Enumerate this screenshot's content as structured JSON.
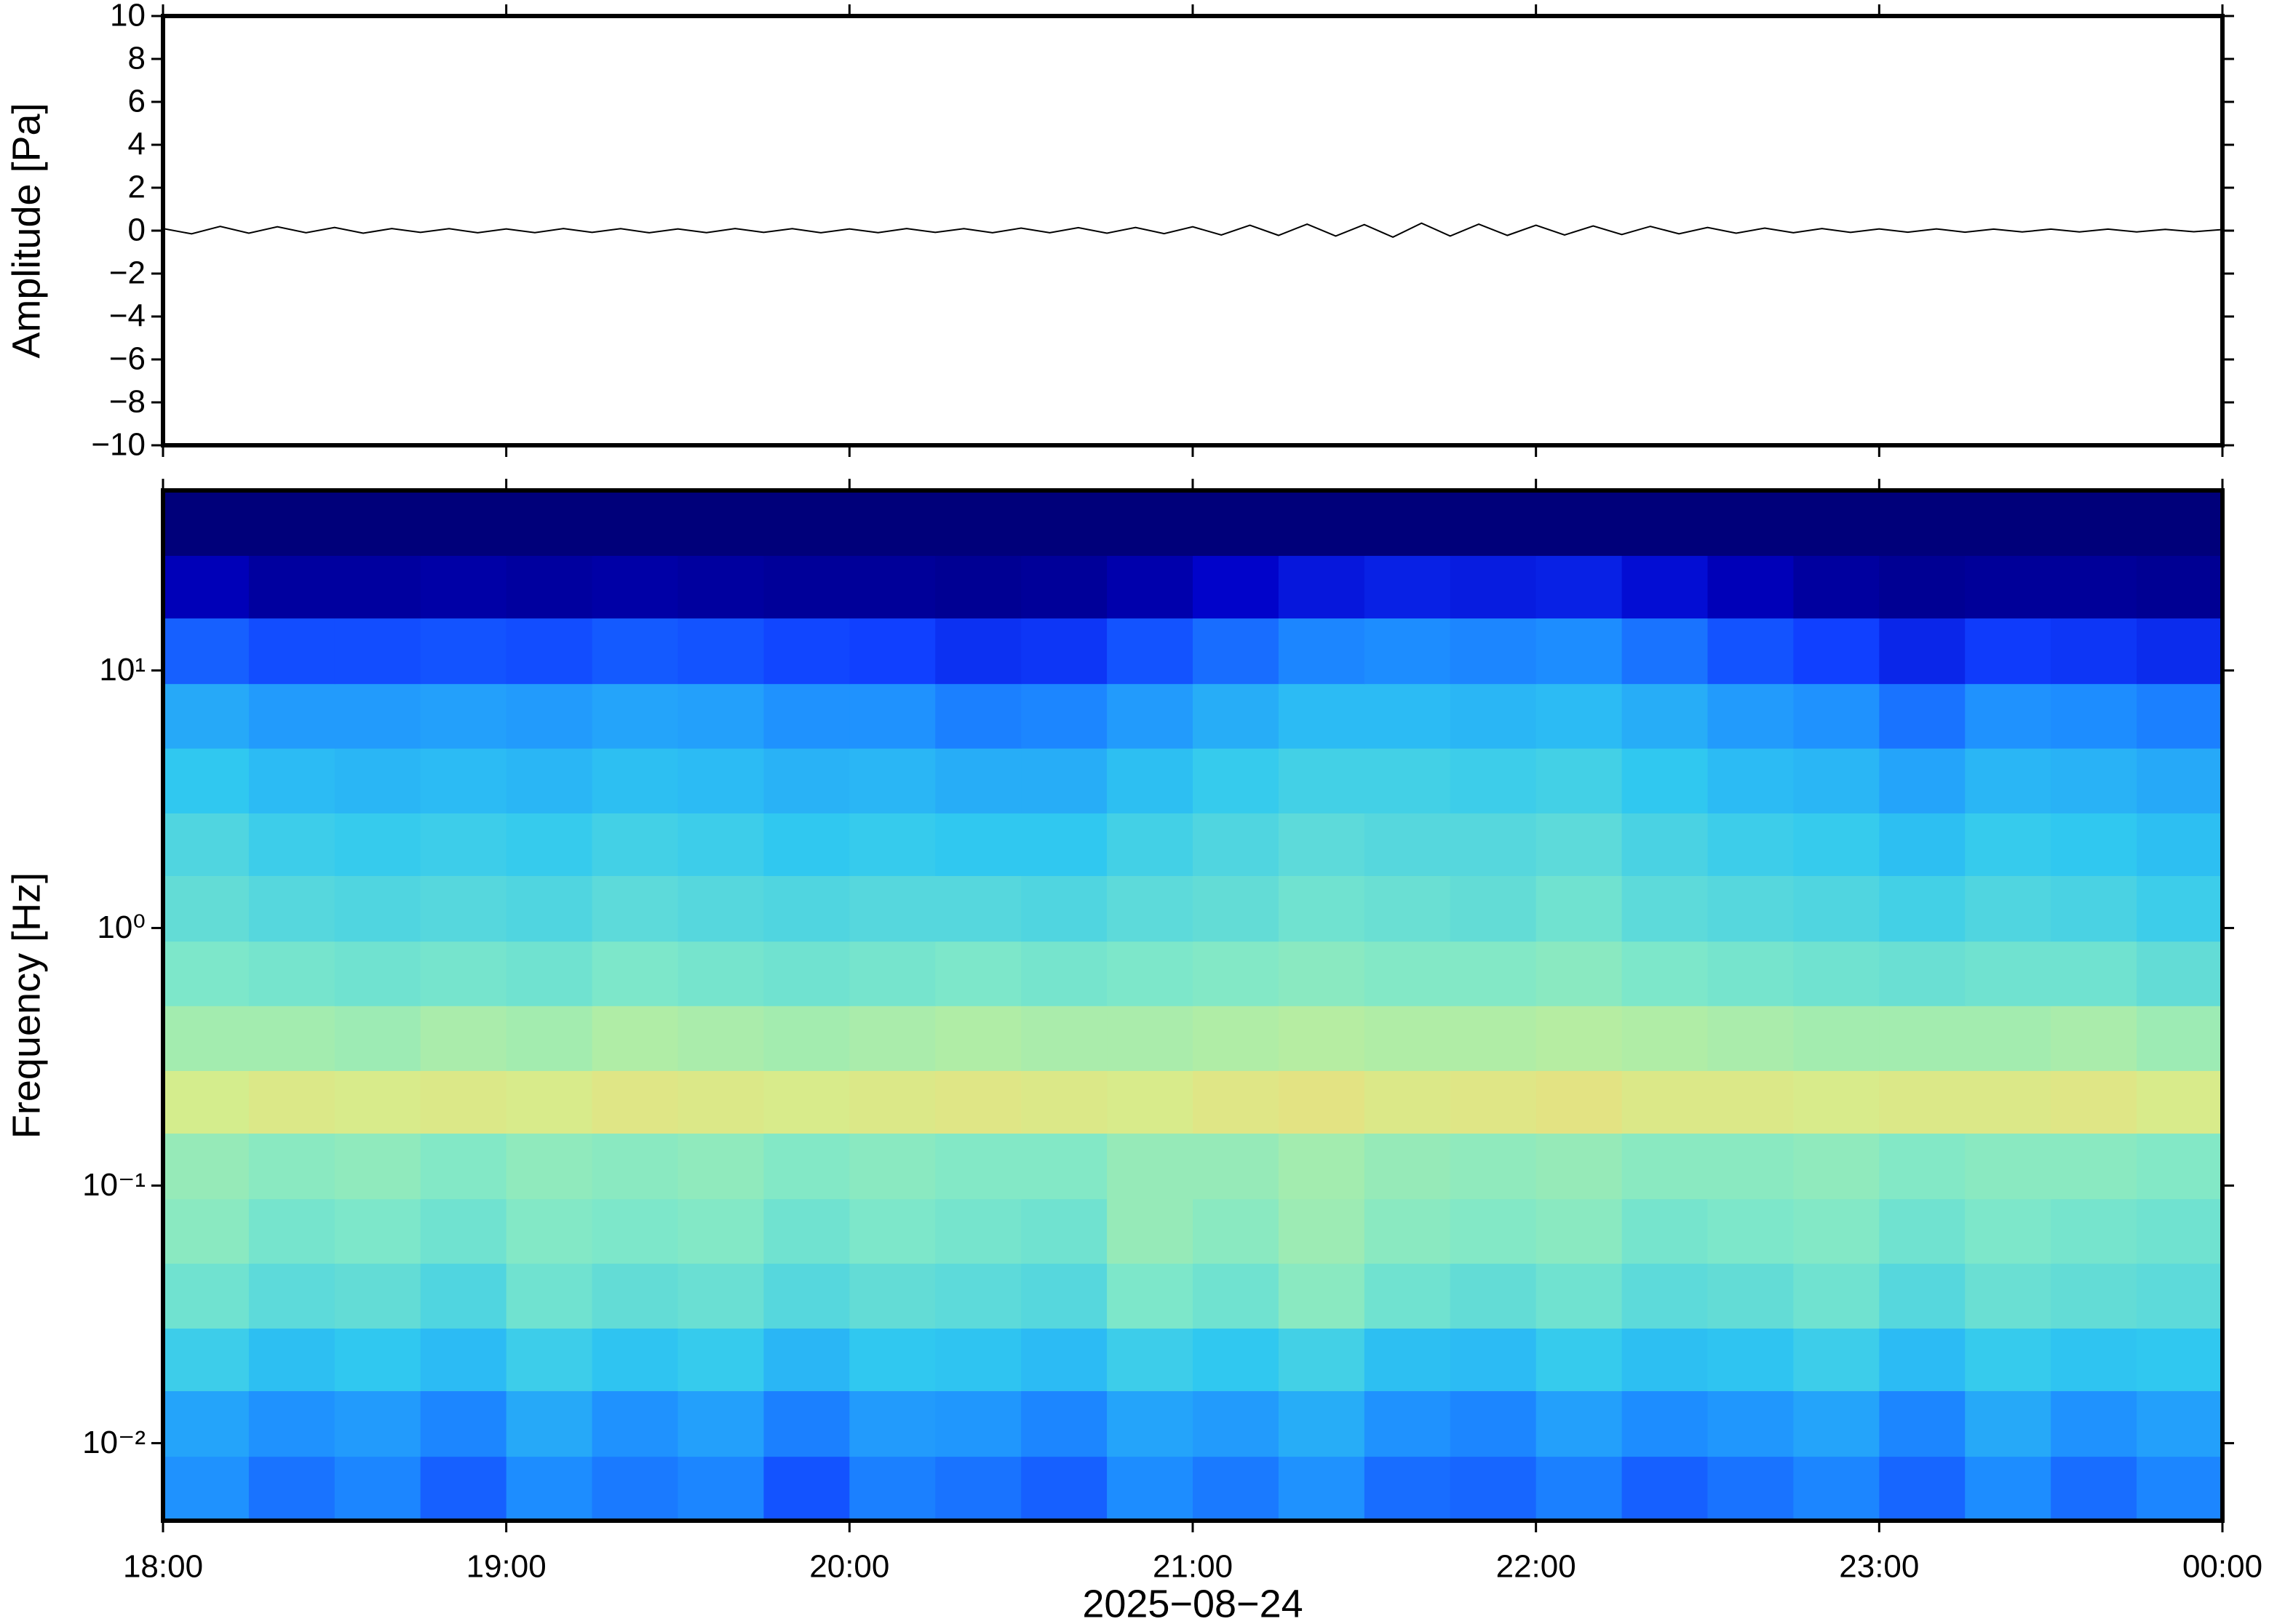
{
  "chart_data": [
    {
      "type": "line",
      "ylabel": "Amplitude [Pa]",
      "color": "#000000",
      "xlim": [
        0,
        360
      ],
      "ylim": [
        -10,
        10
      ],
      "yticks": [
        {
          "value": -10,
          "label": "−10"
        },
        {
          "value": -8,
          "label": "−8"
        },
        {
          "value": -6,
          "label": "−6"
        },
        {
          "value": -4,
          "label": "−4"
        },
        {
          "value": -2,
          "label": "−2"
        },
        0,
        2,
        4,
        6,
        8,
        10
      ],
      "x": [
        0,
        5,
        10,
        15,
        20,
        25,
        30,
        35,
        40,
        45,
        50,
        55,
        60,
        65,
        70,
        75,
        80,
        85,
        90,
        95,
        100,
        105,
        110,
        115,
        120,
        125,
        130,
        135,
        140,
        145,
        150,
        155,
        160,
        165,
        170,
        175,
        180,
        185,
        190,
        195,
        200,
        205,
        210,
        215,
        220,
        225,
        230,
        235,
        240,
        245,
        250,
        255,
        260,
        265,
        270,
        275,
        280,
        285,
        290,
        295,
        300,
        305,
        310,
        315,
        320,
        325,
        330,
        335,
        340,
        345,
        350,
        355,
        360
      ],
      "values": [
        0.1,
        -0.15,
        0.2,
        -0.12,
        0.18,
        -0.1,
        0.15,
        -0.12,
        0.1,
        -0.08,
        0.09,
        -0.1,
        0.08,
        -0.09,
        0.1,
        -0.08,
        0.09,
        -0.1,
        0.08,
        -0.09,
        0.1,
        -0.08,
        0.09,
        -0.1,
        0.08,
        -0.09,
        0.1,
        -0.08,
        0.09,
        -0.1,
        0.12,
        -0.1,
        0.14,
        -0.12,
        0.15,
        -0.14,
        0.18,
        -0.2,
        0.25,
        -0.22,
        0.3,
        -0.25,
        0.28,
        -0.3,
        0.35,
        -0.25,
        0.3,
        -0.22,
        0.25,
        -0.2,
        0.22,
        -0.18,
        0.2,
        -0.15,
        0.15,
        -0.12,
        0.12,
        -0.1,
        0.1,
        -0.08,
        0.08,
        -0.07,
        0.08,
        -0.07,
        0.07,
        -0.06,
        0.07,
        -0.06,
        0.07,
        -0.06,
        0.06,
        -0.05,
        0.05
      ]
    },
    {
      "type": "spectrogram",
      "ylabel": "Frequency [Hz]",
      "xlabel": "2025−08−24",
      "log_y": true,
      "xlim": [
        0,
        360
      ],
      "xticks": [
        {
          "value": 0,
          "label": "18:00"
        },
        {
          "value": 60,
          "label": "19:00"
        },
        {
          "value": 120,
          "label": "20:00"
        },
        {
          "value": 180,
          "label": "21:00"
        },
        {
          "value": 240,
          "label": "22:00"
        },
        {
          "value": 300,
          "label": "23:00"
        },
        {
          "value": 360,
          "label": "00:00"
        }
      ],
      "ylim": [
        0.005,
        50
      ],
      "yticks": [
        {
          "value": 0.01,
          "label": "10⁻²"
        },
        {
          "value": 0.1,
          "label": "10⁻¹"
        },
        {
          "value": 1,
          "label": "10⁰"
        },
        {
          "value": 10,
          "label": "10¹"
        }
      ],
      "colormap": [
        "#00007a",
        "#0000c8",
        "#1040ff",
        "#1e90ff",
        "#30c8f0",
        "#80e8c8",
        "#d0f090",
        "#ffd070",
        "#ff8040"
      ],
      "clim": [
        0,
        1
      ],
      "times": [
        0,
        15,
        30,
        45,
        60,
        75,
        90,
        105,
        120,
        135,
        150,
        165,
        180,
        195,
        210,
        225,
        240,
        255,
        270,
        285,
        300,
        315,
        330,
        345,
        360
      ],
      "freqs": [
        0.005,
        0.0089,
        0.016,
        0.028,
        0.05,
        0.089,
        0.16,
        0.28,
        0.5,
        0.89,
        1.6,
        2.8,
        5,
        8.9,
        16,
        28,
        50
      ],
      "z": [
        [
          0.38,
          0.33,
          0.36,
          0.3,
          0.37,
          0.34,
          0.36,
          0.28,
          0.35,
          0.33,
          0.3,
          0.37,
          0.34,
          0.38,
          0.32,
          0.31,
          0.35,
          0.3,
          0.33,
          0.36,
          0.31,
          0.37,
          0.32,
          0.36
        ],
        [
          0.42,
          0.38,
          0.4,
          0.36,
          0.43,
          0.38,
          0.41,
          0.35,
          0.4,
          0.39,
          0.36,
          0.42,
          0.4,
          0.44,
          0.38,
          0.36,
          0.41,
          0.37,
          0.39,
          0.42,
          0.36,
          0.43,
          0.38,
          0.41
        ],
        [
          0.52,
          0.48,
          0.5,
          0.47,
          0.52,
          0.49,
          0.51,
          0.46,
          0.5,
          0.49,
          0.47,
          0.52,
          0.5,
          0.53,
          0.48,
          0.47,
          0.51,
          0.48,
          0.49,
          0.52,
          0.47,
          0.51,
          0.49,
          0.5
        ],
        [
          0.6,
          0.57,
          0.58,
          0.55,
          0.6,
          0.58,
          0.59,
          0.56,
          0.58,
          0.57,
          0.56,
          0.62,
          0.6,
          0.64,
          0.6,
          0.58,
          0.6,
          0.57,
          0.58,
          0.6,
          0.56,
          0.59,
          0.58,
          0.57
        ],
        [
          0.64,
          0.61,
          0.62,
          0.6,
          0.63,
          0.62,
          0.63,
          0.6,
          0.62,
          0.61,
          0.6,
          0.66,
          0.64,
          0.67,
          0.64,
          0.63,
          0.64,
          0.61,
          0.62,
          0.63,
          0.6,
          0.62,
          0.61,
          0.6
        ],
        [
          0.66,
          0.64,
          0.65,
          0.63,
          0.65,
          0.64,
          0.65,
          0.63,
          0.64,
          0.63,
          0.63,
          0.66,
          0.66,
          0.68,
          0.66,
          0.65,
          0.66,
          0.64,
          0.64,
          0.65,
          0.63,
          0.64,
          0.64,
          0.63
        ],
        [
          0.76,
          0.78,
          0.77,
          0.78,
          0.77,
          0.79,
          0.78,
          0.77,
          0.78,
          0.79,
          0.78,
          0.77,
          0.79,
          0.8,
          0.78,
          0.79,
          0.8,
          0.78,
          0.78,
          0.77,
          0.78,
          0.78,
          0.79,
          0.77
        ],
        [
          0.68,
          0.68,
          0.67,
          0.69,
          0.68,
          0.7,
          0.69,
          0.68,
          0.69,
          0.7,
          0.69,
          0.69,
          0.7,
          0.71,
          0.7,
          0.7,
          0.71,
          0.7,
          0.69,
          0.68,
          0.68,
          0.68,
          0.69,
          0.67
        ],
        [
          0.62,
          0.61,
          0.6,
          0.61,
          0.6,
          0.62,
          0.61,
          0.6,
          0.61,
          0.62,
          0.61,
          0.62,
          0.63,
          0.64,
          0.63,
          0.63,
          0.64,
          0.62,
          0.61,
          0.6,
          0.59,
          0.6,
          0.6,
          0.58
        ],
        [
          0.58,
          0.56,
          0.55,
          0.56,
          0.55,
          0.57,
          0.56,
          0.55,
          0.56,
          0.56,
          0.55,
          0.57,
          0.58,
          0.6,
          0.59,
          0.58,
          0.6,
          0.57,
          0.56,
          0.55,
          0.53,
          0.55,
          0.54,
          0.52
        ],
        [
          0.55,
          0.52,
          0.51,
          0.52,
          0.51,
          0.53,
          0.52,
          0.5,
          0.51,
          0.5,
          0.5,
          0.53,
          0.55,
          0.57,
          0.56,
          0.56,
          0.57,
          0.54,
          0.52,
          0.51,
          0.48,
          0.51,
          0.5,
          0.48
        ],
        [
          0.5,
          0.47,
          0.46,
          0.47,
          0.46,
          0.48,
          0.47,
          0.45,
          0.46,
          0.44,
          0.44,
          0.48,
          0.51,
          0.53,
          0.53,
          0.52,
          0.53,
          0.5,
          0.47,
          0.46,
          0.42,
          0.46,
          0.45,
          0.43
        ],
        [
          0.43,
          0.4,
          0.4,
          0.41,
          0.4,
          0.42,
          0.41,
          0.38,
          0.38,
          0.35,
          0.36,
          0.4,
          0.44,
          0.47,
          0.47,
          0.46,
          0.47,
          0.44,
          0.4,
          0.38,
          0.33,
          0.38,
          0.37,
          0.35
        ],
        [
          0.3,
          0.27,
          0.27,
          0.28,
          0.27,
          0.29,
          0.28,
          0.26,
          0.25,
          0.22,
          0.23,
          0.28,
          0.32,
          0.36,
          0.37,
          0.36,
          0.37,
          0.33,
          0.28,
          0.25,
          0.2,
          0.24,
          0.23,
          0.21
        ],
        [
          0.1,
          0.06,
          0.06,
          0.07,
          0.06,
          0.07,
          0.06,
          0.05,
          0.05,
          0.04,
          0.05,
          0.08,
          0.13,
          0.17,
          0.19,
          0.18,
          0.19,
          0.15,
          0.1,
          0.06,
          0.04,
          0.05,
          0.05,
          0.04
        ],
        [
          0,
          0,
          0,
          0,
          0,
          0,
          0,
          0,
          0,
          0,
          0,
          0,
          0,
          0,
          0,
          0,
          0,
          0,
          0,
          0,
          0,
          0,
          0,
          0
        ]
      ]
    }
  ]
}
